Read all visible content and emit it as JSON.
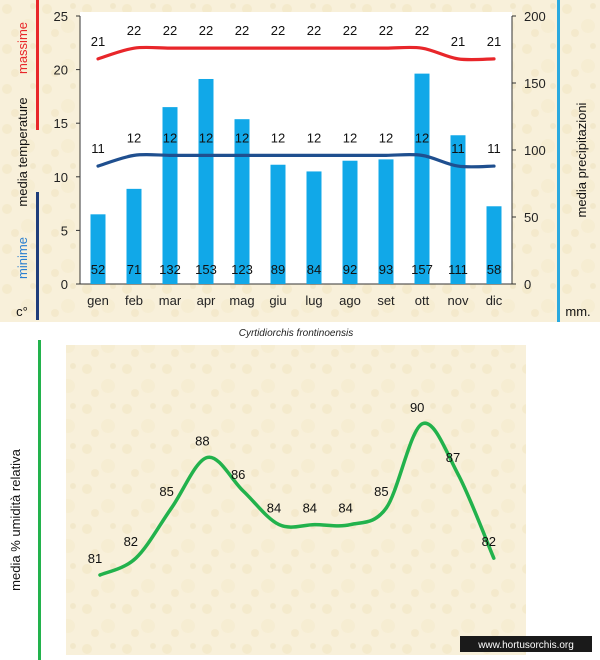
{
  "chart_data": [
    {
      "type": "bar+line",
      "categories": [
        "gen",
        "feb",
        "mar",
        "apr",
        "mag",
        "giu",
        "lug",
        "ago",
        "set",
        "ott",
        "nov",
        "dic"
      ],
      "left_axis": {
        "ylim": [
          0,
          25
        ],
        "ticks": [
          0,
          5,
          10,
          15,
          20,
          25
        ],
        "labels": {
          "max": "massime",
          "media": "media  temperature",
          "min": "minime",
          "unit": "c°"
        }
      },
      "right_axis": {
        "ylim": [
          0,
          200
        ],
        "ticks": [
          0,
          50,
          100,
          150,
          200
        ],
        "labels": {
          "title": "media  precipitazioni",
          "unit": "mm."
        }
      },
      "series": [
        {
          "name": "precipitazioni",
          "kind": "bar",
          "axis": "right",
          "color": "#11a8e8",
          "values": [
            52,
            71,
            132,
            153,
            123,
            89,
            84,
            92,
            93,
            157,
            111,
            58
          ]
        },
        {
          "name": "massime",
          "kind": "line",
          "axis": "left",
          "color": "#e8262a",
          "values": [
            21,
            22,
            22,
            22,
            22,
            22,
            22,
            22,
            22,
            22,
            21,
            21
          ]
        },
        {
          "name": "minime",
          "kind": "line",
          "axis": "left",
          "color": "#1f4f8f",
          "values": [
            11,
            12,
            12,
            12,
            12,
            12,
            12,
            12,
            12,
            12,
            11,
            11
          ]
        }
      ],
      "colors": {
        "max_bar": "#e8262a",
        "min_bar": "#1f3d7a",
        "precip_bar": "#29a9df",
        "plot_bg": "#ffffff"
      }
    },
    {
      "type": "line",
      "title": "Cyrtidiorchis frontinoensis",
      "ylabel": "media %  umidità relativa",
      "categories": [
        "gen",
        "feb",
        "mar",
        "apr",
        "mag",
        "giu",
        "lug",
        "ago",
        "set",
        "ott",
        "nov",
        "dic"
      ],
      "values": [
        81,
        82,
        85,
        88,
        86,
        84,
        84,
        84,
        85,
        90,
        87,
        82
      ],
      "ylim": [
        79,
        91
      ],
      "colors": {
        "line": "#22b24c",
        "bg": "#f7efd9",
        "axis_bar": "#22b24c"
      }
    }
  ],
  "watermark": "www.hortusorchis.org"
}
